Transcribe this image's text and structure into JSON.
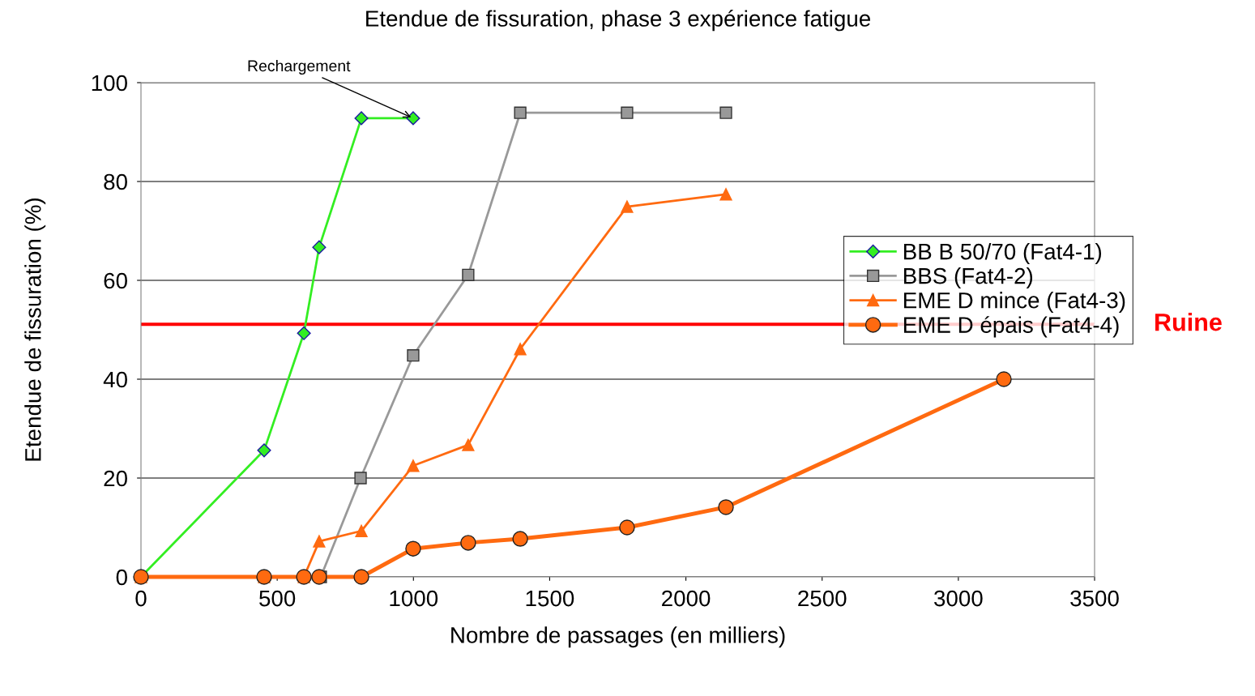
{
  "chart_data": {
    "type": "line",
    "title": "Etendue de fissuration, phase 3 expérience fatigue",
    "xlabel": "Nombre de passages (en milliers)",
    "ylabel": "Etendue de fissuration (%)",
    "xlim": [
      0,
      3500
    ],
    "xticks": [
      0,
      500,
      1000,
      1500,
      2000,
      2500,
      3000,
      3500
    ],
    "ylim": [
      0,
      100
    ],
    "yticks": [
      0,
      20,
      40,
      60,
      80,
      100
    ],
    "grid": "y",
    "legend": "right",
    "series": [
      {
        "name": "BB B 50/70 (Fat4-1)",
        "color": "#33ee22",
        "marker": "diamond",
        "x": [
          0,
          452,
          598,
          654,
          809,
          999
        ],
        "values": [
          0,
          25.6,
          49.3,
          66.7,
          92.8,
          92.8
        ]
      },
      {
        "name": "BBS (Fat4-2)",
        "color": "#999999",
        "marker": "square",
        "x": [
          660,
          806,
          999,
          1201,
          1392,
          1784,
          2147
        ],
        "values": [
          0,
          20,
          44.8,
          61.1,
          93.9,
          93.9,
          93.9
        ]
      },
      {
        "name": "EME D mince (Fat4-3)",
        "color": "#ff6a10",
        "marker": "triangle",
        "x": [
          0,
          452,
          598,
          654,
          809,
          999,
          1201,
          1392,
          1784,
          2147
        ],
        "values": [
          0,
          0,
          0,
          7.2,
          9.3,
          22.5,
          26.7,
          46.1,
          74.9,
          77.4
        ]
      },
      {
        "name": "EME D épais (Fat4-4)",
        "color": "#ff6a10",
        "marker": "circle",
        "x": [
          0,
          452,
          598,
          654,
          809,
          999,
          1201,
          1392,
          1784,
          2147,
          3167
        ],
        "values": [
          0,
          0,
          0,
          0,
          0,
          5.7,
          6.9,
          7.7,
          10.0,
          14.1,
          40
        ]
      }
    ],
    "ref_lines": [
      {
        "axis": "y",
        "value": 51.1,
        "label": "Ruine",
        "color": "#ff0000"
      }
    ],
    "annotations": [
      {
        "text": "Rechargement",
        "x": 999,
        "y": 92.8
      }
    ]
  }
}
